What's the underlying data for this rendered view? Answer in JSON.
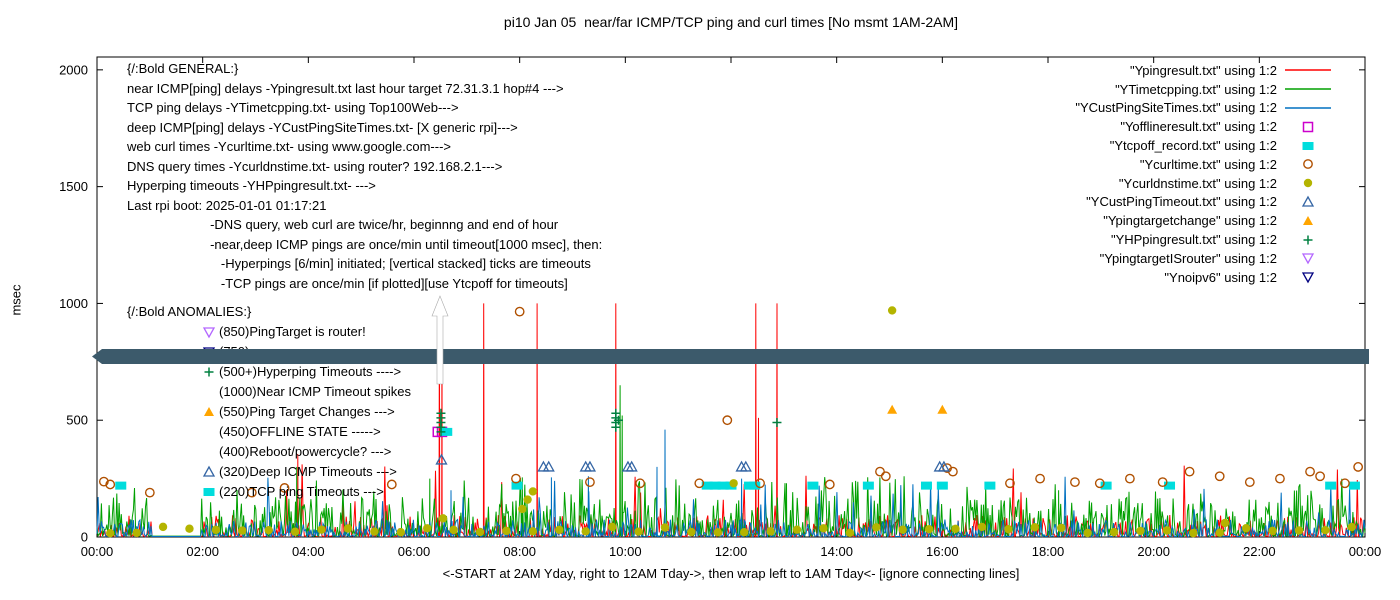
{
  "title": "pi10 Jan 05  near/far ICMP/TCP ping and curl times [No msmt 1AM-2AM]",
  "ylabel": "msec",
  "xlabel": "<-START at 2AM Yday, right to 12AM Tday->, then wrap left to 1AM Tday<- [ignore connecting lines]",
  "legend": {
    "items": [
      {
        "label": "\"Ypingresult.txt\" using 1:2",
        "marker": "line",
        "color": "#ff0000"
      },
      {
        "label": "\"YTimetcpping.txt\" using 1:2",
        "marker": "line",
        "color": "#00a000"
      },
      {
        "label": "\"YCustPingSiteTimes.txt\" using 1:2",
        "marker": "line",
        "color": "#0070c0"
      },
      {
        "label": "\"Yofflineresult.txt\" using 1:2",
        "marker": "square-open",
        "color": "#cc00cc"
      },
      {
        "label": "\"Ytcpoff_record.txt\" using 1:2",
        "marker": "square-filled",
        "color": "#00dddd"
      },
      {
        "label": "\"Ycurltime.txt\" using 1:2",
        "marker": "circle-open",
        "color": "#b05000"
      },
      {
        "label": "\"Ycurldnstime.txt\" using 1:2",
        "marker": "circle-filled",
        "color": "#b4b400"
      },
      {
        "label": "\"YCustPingTimeout.txt\" using 1:2",
        "marker": "triangle-up-open",
        "color": "#3465a4"
      },
      {
        "label": "\"Ypingtargetchange\" using 1:2",
        "marker": "triangle-up-filled",
        "color": "#ffa500"
      },
      {
        "label": "\"YHPpingresult.txt\" using 1:2",
        "marker": "plus",
        "color": "#008040"
      },
      {
        "label": "\"YpingtargetISrouter\" using 1:2",
        "marker": "triangle-down-open",
        "color": "#b366ff"
      },
      {
        "label": "\"Ynoipv6\" using 1:2",
        "marker": "triangle-down-open",
        "color": "#000080"
      }
    ]
  },
  "general_lines": [
    "{/:Bold GENERAL:}",
    "near ICMP[ping] delays -Ypingresult.txt last hour target 72.31.3.1 hop#4 --->",
    "TCP ping delays -YTimetcpping.txt- using Top100Web--->",
    "deep ICMP[ping] delays -YCustPingSiteTimes.txt- [X generic rpi]--->",
    "web curl times -Ycurltime.txt- using www.google.com--->",
    "DNS query times -Ycurldnstime.txt- using router? 192.168.2.1--->",
    "Hyperping timeouts -YHPpingresult.txt- --->",
    "Last rpi boot: 2025-01-01 01:17:21",
    "                       -DNS query, web curl are twice/hr, beginnng and end of hour",
    "                       -near,deep ICMP pings are once/min until timeout[1000 msec], then:",
    "                          -Hyperpings [6/min] initiated; [vertical stacked] ticks are timeouts",
    "                          -TCP pings are once/min [if plotted][use Ytcpoff for timeouts]"
  ],
  "anomalies": [
    {
      "marker": null,
      "color": null,
      "text": "{/:Bold ANOMALIES:}",
      "indent": false
    },
    {
      "marker": "triangle-down-open",
      "color": "#b366ff",
      "text": "(850)PingTarget is router!",
      "indent": true
    },
    {
      "marker": "triangle-down-open",
      "color": "#000080",
      "text": "(750)",
      "indent": true
    },
    {
      "marker": "plus",
      "color": "#008040",
      "text": "(500+)Hyperping Timeouts ---->",
      "indent": true
    },
    {
      "marker": null,
      "color": null,
      "text": "(1000)Near ICMP Timeout spikes",
      "indent": true
    },
    {
      "marker": "triangle-up-filled",
      "color": "#ffa500",
      "text": "(550)Ping Target Changes --->",
      "indent": true
    },
    {
      "marker": null,
      "color": null,
      "text": "(450)OFFLINE STATE ----->",
      "indent": true
    },
    {
      "marker": null,
      "color": null,
      "text": "(400)Reboot/powercycle? --->",
      "indent": true
    },
    {
      "marker": "triangle-up-open",
      "color": "#3465a4",
      "text": "(320)Deep ICMP Timeouts --->",
      "indent": true
    },
    {
      "marker": "square-filled",
      "color": "#00dddd",
      "text": "(220)TCP ping Timeouts --->",
      "indent": true
    }
  ],
  "chart_data": {
    "type": "line",
    "title": "pi10 Jan 05  near/far ICMP/TCP ping and curl times [No msmt 1AM-2AM]",
    "xlabel": "<-START at 2AM Yday, right to 12AM Tday->, then wrap left to 1AM Tday<- [ignore connecting lines]",
    "ylabel": "msec",
    "x_tick_labels": [
      "00:00",
      "02:00",
      "04:00",
      "06:00",
      "08:00",
      "10:00",
      "12:00",
      "14:00",
      "16:00",
      "18:00",
      "20:00",
      "22:00",
      "00:00"
    ],
    "y_ticks": [
      0,
      500,
      1000,
      1500,
      2000
    ],
    "ylim": [
      0,
      2055
    ],
    "hours_span": 24,
    "no_measurement_hours": [
      1,
      2
    ],
    "lines": [
      {
        "name": "Ypingresult.txt",
        "color": "#ff0000",
        "seed": 11,
        "noise": {
          "min": 2,
          "max": 95,
          "spike_chance": 0.018,
          "spike_min": 120,
          "spike_max": 340
        },
        "spikes": [
          [
            3.8,
            355
          ],
          [
            6.48,
            1000
          ],
          [
            6.53,
            1000
          ],
          [
            7.32,
            1000
          ],
          [
            8.33,
            1000
          ],
          [
            9.82,
            1000
          ],
          [
            12.47,
            1000
          ],
          [
            12.52,
            510
          ],
          [
            12.87,
            1000
          ]
        ]
      },
      {
        "name": "YTimetcpping.txt",
        "color": "#00a000",
        "seed": 22,
        "noise": {
          "min": 4,
          "max": 170,
          "spike_chance": 0.05,
          "spike_min": 130,
          "spike_max": 260
        },
        "spikes": [
          [
            3.78,
            300
          ],
          [
            6.3,
            250
          ],
          [
            8.05,
            255
          ],
          [
            9.9,
            650
          ],
          [
            9.94,
            520
          ],
          [
            13.05,
            230
          ],
          [
            18.2,
            200
          ]
        ]
      },
      {
        "name": "YCustPingSiteTimes.txt",
        "color": "#0070c0",
        "seed": 33,
        "noise": {
          "min": 2,
          "max": 75,
          "spike_chance": 0.025,
          "spike_min": 100,
          "spike_max": 260
        },
        "spikes": [
          [
            6.7,
            200
          ],
          [
            8.6,
            255
          ],
          [
            9.3,
            260
          ],
          [
            10.6,
            300
          ],
          [
            10.75,
            460
          ],
          [
            12.2,
            250
          ]
        ]
      }
    ],
    "scatter": [
      {
        "name": "Yofflineresult.txt",
        "marker": "square-open",
        "color": "#cc00cc",
        "points": [
          [
            6.45,
            450
          ],
          [
            6.53,
            450
          ]
        ]
      },
      {
        "name": "Ytcpoff_record.txt",
        "marker": "square-filled",
        "color": "#00dddd",
        "points": [
          [
            0.45,
            220
          ],
          [
            6.62,
            450
          ],
          [
            7.95,
            220
          ],
          [
            11.55,
            220
          ],
          [
            11.7,
            220
          ],
          [
            11.85,
            220
          ],
          [
            12.0,
            220
          ],
          [
            12.35,
            220
          ],
          [
            12.45,
            220
          ],
          [
            13.55,
            220
          ],
          [
            14.6,
            220
          ],
          [
            15.7,
            220
          ],
          [
            16.0,
            220
          ],
          [
            16.9,
            220
          ],
          [
            19.1,
            220
          ],
          [
            20.3,
            220
          ],
          [
            23.35,
            220
          ],
          [
            23.8,
            220
          ]
        ]
      },
      {
        "name": "Ycurltime.txt",
        "marker": "circle-open",
        "color": "#b05000",
        "points": [
          [
            0.13,
            237
          ],
          [
            0.25,
            225
          ],
          [
            1.0,
            190
          ],
          [
            2.93,
            190
          ],
          [
            3.55,
            210
          ],
          [
            5.58,
            225
          ],
          [
            7.93,
            250
          ],
          [
            8.0,
            965
          ],
          [
            9.33,
            235
          ],
          [
            10.28,
            230
          ],
          [
            11.4,
            230
          ],
          [
            11.93,
            500
          ],
          [
            12.55,
            230
          ],
          [
            13.87,
            225
          ],
          [
            14.82,
            280
          ],
          [
            14.93,
            260
          ],
          [
            16.09,
            295
          ],
          [
            16.2,
            280
          ],
          [
            17.28,
            230
          ],
          [
            17.85,
            250
          ],
          [
            18.51,
            235
          ],
          [
            18.98,
            230
          ],
          [
            19.55,
            250
          ],
          [
            20.17,
            235
          ],
          [
            20.68,
            280
          ],
          [
            21.25,
            260
          ],
          [
            21.82,
            235
          ],
          [
            22.39,
            250
          ],
          [
            22.96,
            280
          ],
          [
            23.15,
            260
          ],
          [
            23.62,
            230
          ],
          [
            23.87,
            300
          ]
        ]
      },
      {
        "name": "Ycurldnstime.txt",
        "marker": "circle-filled",
        "color": "#b4b400",
        "baseline": {
          "start": 0.25,
          "end": 23.75,
          "step": 0.5,
          "y": 30,
          "jitter": 14,
          "seed": 7
        },
        "points": [
          [
            6.55,
            80
          ],
          [
            8.05,
            120
          ],
          [
            8.15,
            160
          ],
          [
            8.25,
            195
          ],
          [
            12.05,
            230
          ],
          [
            15.05,
            970
          ],
          [
            21.35,
            60
          ]
        ]
      },
      {
        "name": "YCustPingTimeout.txt",
        "marker": "triangle-up-open",
        "color": "#3465a4",
        "points": [
          [
            6.52,
            330
          ],
          [
            8.45,
            300
          ],
          [
            8.55,
            300
          ],
          [
            9.25,
            300
          ],
          [
            9.33,
            300
          ],
          [
            10.05,
            300
          ],
          [
            10.12,
            300
          ],
          [
            12.2,
            300
          ],
          [
            12.28,
            300
          ],
          [
            15.95,
            300
          ],
          [
            16.03,
            300
          ]
        ]
      },
      {
        "name": "Ypingtargetchange",
        "marker": "triangle-up-filled",
        "color": "#ffa500",
        "points": [
          [
            15.05,
            545
          ],
          [
            16.0,
            545
          ]
        ]
      },
      {
        "name": "YHPpingresult.txt",
        "marker": "plus",
        "color": "#008040",
        "points": [
          [
            6.51,
            450
          ],
          [
            6.51,
            470
          ],
          [
            6.51,
            490
          ],
          [
            6.51,
            510
          ],
          [
            6.51,
            530
          ],
          [
            9.82,
            470
          ],
          [
            9.82,
            490
          ],
          [
            9.82,
            510
          ],
          [
            9.82,
            530
          ],
          [
            9.87,
            500
          ],
          [
            12.87,
            490
          ]
        ]
      }
    ],
    "band": {
      "msec_low": 741,
      "msec_high": 805,
      "color": "#3c5a6b"
    },
    "event_arrow": {
      "hour": 6.5,
      "msec_from": 700,
      "msec_to": 1030,
      "color": "#ffffff"
    }
  }
}
